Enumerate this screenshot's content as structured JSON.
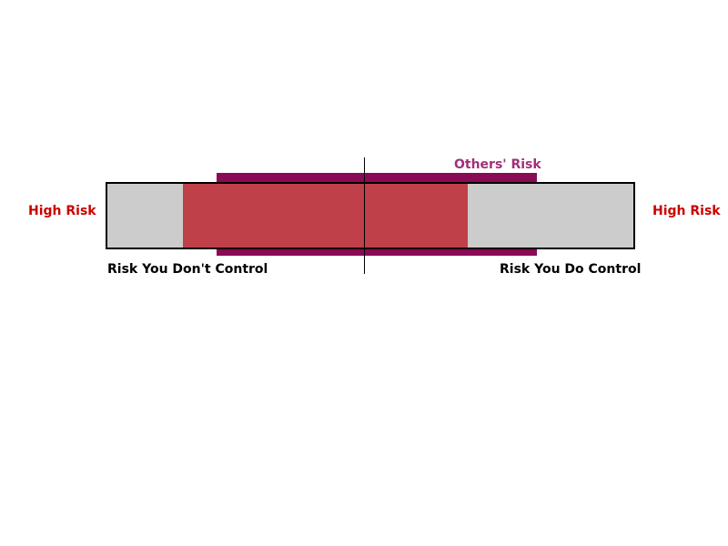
{
  "diagram": {
    "left_label": "High Risk",
    "right_label": "High Risk",
    "others_label": "Others' Risk",
    "bottom_left_label": "Risk You Don't Control",
    "bottom_right_label": "Risk You Do Control"
  },
  "colors": {
    "high_risk_text": "#cc0000",
    "others_risk": "#8b0a55",
    "others_risk_text": "#a0307a",
    "highlight_band": "#c0404a",
    "bar_fill": "#cccccc",
    "outline": "#000000"
  }
}
